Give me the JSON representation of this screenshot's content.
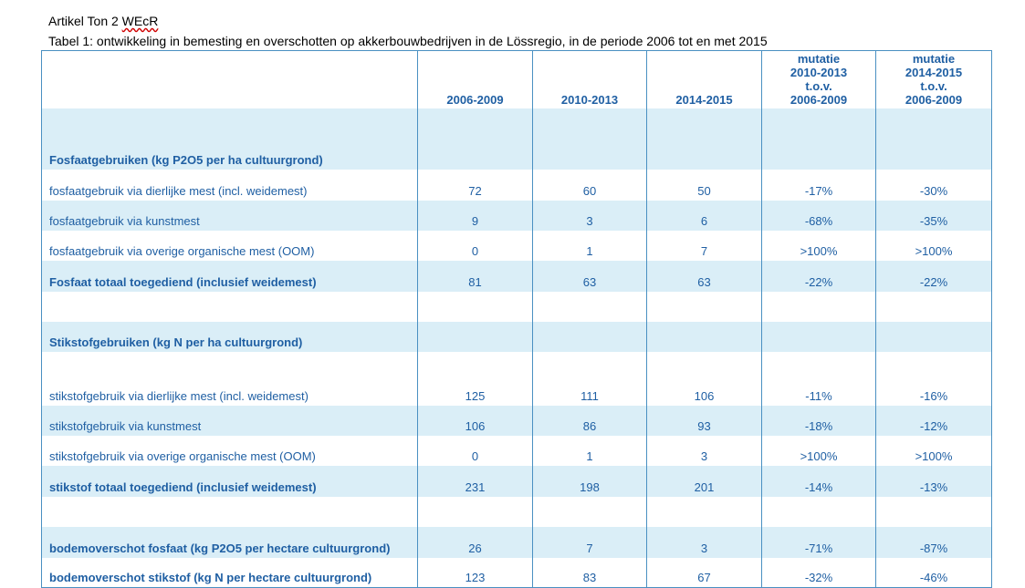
{
  "caption": {
    "line1_prefix": "Artikel Ton 2 ",
    "line1_word": "WEcR",
    "line2": "Tabel 1: ontwikkeling in bemesting en overschotten op akkerbouwbedrijven in de Lössregio, in de periode 2006 tot en met 2015"
  },
  "table": {
    "headers": {
      "col1": "2006-2009",
      "col2": "2010-2013",
      "col3": "2014-2015",
      "col4": [
        "mutatie",
        "2010-2013",
        "t.o.v.",
        "2006-2009"
      ],
      "col5": [
        "mutatie",
        "2014-2015",
        "t.o.v.",
        "2006-2009"
      ]
    },
    "rows": [
      {
        "label": "",
        "values": [
          "",
          "",
          "",
          "",
          ""
        ]
      },
      {
        "label": "Fosfaatgebruiken (kg P2O5 per ha cultuurgrond)",
        "values": [
          "",
          "",
          "",
          "",
          ""
        ]
      },
      {
        "label": "fosfaatgebruik via dierlijke mest (incl. weidemest)",
        "values": [
          "72",
          "60",
          "50",
          "-17%",
          "-30%"
        ]
      },
      {
        "label": "fosfaatgebruik via kunstmest",
        "values": [
          "9",
          "3",
          "6",
          "-68%",
          "-35%"
        ]
      },
      {
        "label": "fosfaatgebruik via overige organische mest (OOM)",
        "values": [
          "0",
          "1",
          "7",
          ">100%",
          ">100%"
        ]
      },
      {
        "label": "Fosfaat totaal toegediend (inclusief weidemest)",
        "values": [
          "81",
          "63",
          "63",
          "-22%",
          "-22%"
        ]
      },
      {
        "label": "",
        "values": [
          "",
          "",
          "",
          "",
          ""
        ]
      },
      {
        "label": "Stikstofgebruiken (kg N per ha cultuurgrond)",
        "values": [
          "",
          "",
          "",
          "",
          ""
        ]
      },
      {
        "label": "",
        "values": [
          "",
          "",
          "",
          "",
          ""
        ]
      },
      {
        "label": "stikstofgebruik via dierlijke mest (incl. weidemest)",
        "values": [
          "125",
          "111",
          "106",
          "-11%",
          "-16%"
        ]
      },
      {
        "label": "stikstofgebruik via kunstmest",
        "values": [
          "106",
          "86",
          "93",
          "-18%",
          "-12%"
        ]
      },
      {
        "label": "stikstofgebruik via overige organische mest (OOM)",
        "values": [
          "0",
          "1",
          "3",
          ">100%",
          ">100%"
        ]
      },
      {
        "label": "stikstof totaal toegediend (inclusief weidemest)",
        "values": [
          "231",
          "198",
          "201",
          "-14%",
          "-13%"
        ]
      },
      {
        "label": "",
        "values": [
          "",
          "",
          "",
          "",
          ""
        ]
      },
      {
        "label": "bodemoverschot fosfaat (kg P2O5 per hectare cultuurgrond)",
        "values": [
          "26",
          "7",
          "3",
          "-71%",
          "-87%"
        ]
      },
      {
        "label": "bodemoverschot stikstof (kg N per hectare cultuurgrond)",
        "values": [
          "123",
          "83",
          "67",
          "-32%",
          "-46%"
        ]
      }
    ]
  },
  "colors": {
    "text": "#1f5fa3",
    "shade": "#daeef7",
    "border": "#4a90c2"
  }
}
